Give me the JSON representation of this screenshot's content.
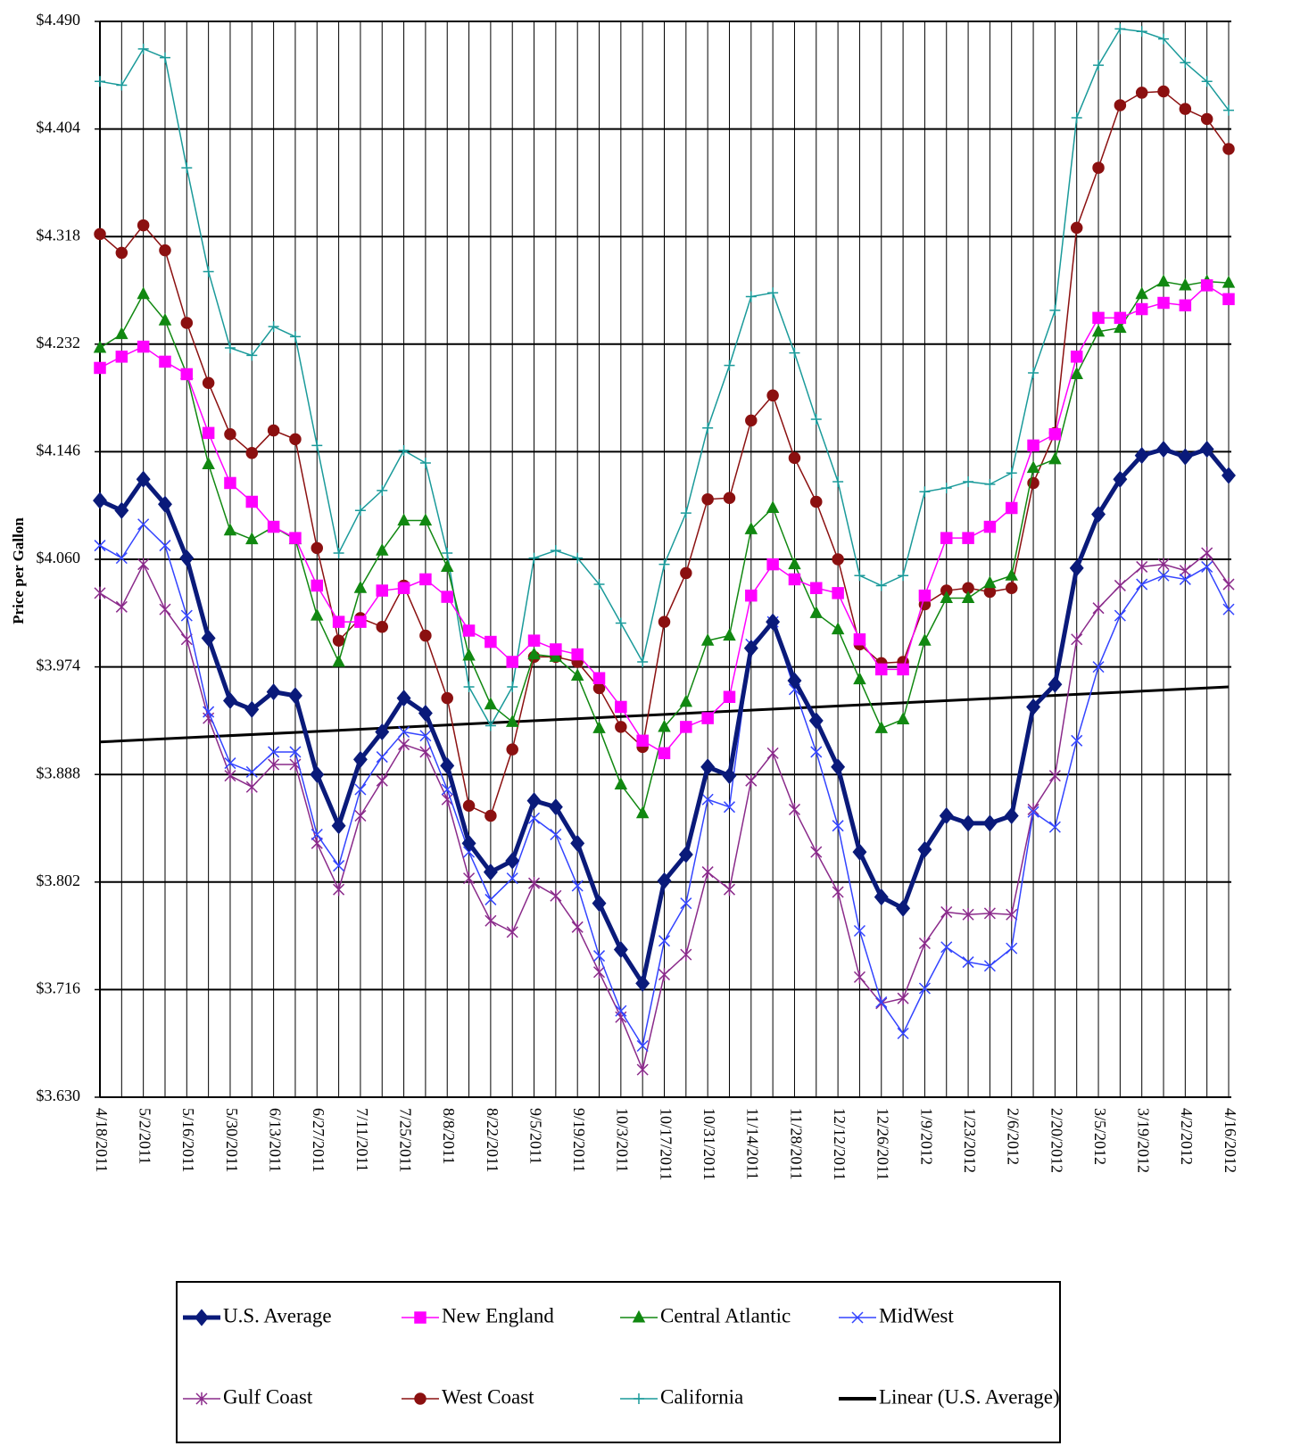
{
  "chart_data": {
    "type": "line",
    "y_label": "Price per  Gallon",
    "categories": [
      "4/18/2011",
      null,
      "5/2/2011",
      null,
      "5/16/2011",
      null,
      "5/30/2011",
      null,
      "6/13/2011",
      null,
      "6/27/2011",
      null,
      "7/11/2011",
      null,
      "7/25/2011",
      null,
      "8/8/2011",
      null,
      "8/22/2011",
      null,
      "9/5/2011",
      null,
      "9/19/2011",
      null,
      "10/3/2011",
      null,
      "10/17/2011",
      null,
      "10/31/2011",
      null,
      "11/14/2011",
      null,
      "11/28/2011",
      null,
      "12/12/2011",
      null,
      "12/26/2011",
      null,
      "1/9/2012",
      null,
      "1/23/2012",
      null,
      "2/6/2012",
      null,
      "2/20/2012",
      null,
      "3/5/2012",
      null,
      "3/19/2012",
      null,
      "4/2/2012",
      null,
      "4/16/2012"
    ],
    "ylim": [
      3.63,
      4.49
    ],
    "yticks": [
      {
        "value": 3.63,
        "label": "$3.630"
      },
      {
        "value": 3.716,
        "label": "$3.716"
      },
      {
        "value": 3.802,
        "label": "$3.802"
      },
      {
        "value": 3.888,
        "label": "$3.888"
      },
      {
        "value": 3.974,
        "label": "$3.974"
      },
      {
        "value": 4.06,
        "label": "$4.060"
      },
      {
        "value": 4.146,
        "label": "$4.146"
      },
      {
        "value": 4.232,
        "label": "$4.232"
      },
      {
        "value": 4.318,
        "label": "$4.318"
      },
      {
        "value": 4.404,
        "label": "$4.404"
      },
      {
        "value": 4.49,
        "label": "$4.490"
      }
    ],
    "grid": true,
    "series": [
      {
        "name": "U.S. Average",
        "color": "#0a1a7a",
        "marker": "diamond",
        "width": 5,
        "values": [
          4.107,
          4.099,
          4.124,
          4.104,
          4.061,
          3.997,
          3.947,
          3.94,
          3.954,
          3.951,
          3.888,
          3.847,
          3.9,
          3.922,
          3.949,
          3.937,
          3.895,
          3.833,
          3.81,
          3.819,
          3.867,
          3.862,
          3.833,
          3.785,
          3.748,
          3.721,
          3.803,
          3.824,
          3.894,
          3.887,
          3.989,
          4.01,
          3.963,
          3.931,
          3.894,
          3.826,
          3.79,
          3.781,
          3.828,
          3.855,
          3.849,
          3.849,
          3.855,
          3.942,
          3.96,
          4.053,
          4.096,
          4.124,
          4.143,
          4.148,
          4.142,
          4.148,
          4.127
        ]
      },
      {
        "name": "New England",
        "color": "#ff00ff",
        "marker": "square",
        "width": 1.5,
        "values": [
          4.213,
          4.222,
          4.23,
          4.218,
          4.208,
          4.161,
          4.121,
          4.106,
          4.086,
          4.077,
          4.039,
          4.01,
          4.01,
          4.035,
          4.037,
          4.044,
          4.03,
          4.003,
          3.994,
          3.978,
          3.995,
          3.988,
          3.984,
          3.965,
          3.942,
          3.915,
          3.905,
          3.926,
          3.933,
          3.95,
          4.031,
          4.056,
          4.044,
          4.037,
          4.033,
          3.996,
          3.972,
          3.972,
          4.031,
          4.077,
          4.077,
          4.086,
          4.101,
          4.151,
          4.16,
          4.222,
          4.253,
          4.253,
          4.26,
          4.265,
          4.263,
          4.279,
          4.268
        ]
      },
      {
        "name": "Central Atlantic",
        "color": "#118811",
        "marker": "triangle",
        "width": 1.5,
        "values": [
          4.229,
          4.24,
          4.272,
          4.251,
          4.208,
          4.136,
          4.083,
          4.076,
          4.086,
          4.076,
          4.015,
          3.978,
          4.037,
          4.067,
          4.091,
          4.091,
          4.054,
          3.983,
          3.944,
          3.93,
          3.984,
          3.982,
          3.967,
          3.925,
          3.88,
          3.857,
          3.926,
          3.946,
          3.995,
          3.999,
          4.084,
          4.101,
          4.056,
          4.017,
          4.004,
          3.964,
          3.925,
          3.932,
          3.995,
          4.029,
          4.029,
          4.041,
          4.047,
          4.133,
          4.14,
          4.208,
          4.242,
          4.245,
          4.272,
          4.282,
          4.279,
          4.282,
          4.281
        ]
      },
      {
        "name": "MidWest",
        "color": "#3344ff",
        "marker": "x",
        "width": 1.5,
        "values": [
          4.071,
          4.061,
          4.088,
          4.071,
          4.015,
          3.938,
          3.897,
          3.89,
          3.906,
          3.906,
          3.84,
          3.815,
          3.876,
          3.902,
          3.922,
          3.919,
          3.876,
          3.826,
          3.788,
          3.805,
          3.853,
          3.84,
          3.799,
          3.743,
          3.699,
          3.671,
          3.755,
          3.785,
          3.868,
          3.862,
          3.992,
          4.01,
          3.956,
          3.906,
          3.847,
          3.763,
          3.706,
          3.681,
          3.717,
          3.75,
          3.738,
          3.735,
          3.749,
          3.858,
          3.846,
          3.915,
          3.974,
          4.015,
          4.04,
          4.047,
          4.044,
          4.054,
          4.02
        ]
      },
      {
        "name": "Gulf Coast",
        "color": "#8a2a8a",
        "marker": "star",
        "width": 1.5,
        "values": [
          4.033,
          4.022,
          4.056,
          4.02,
          3.996,
          3.933,
          3.887,
          3.878,
          3.896,
          3.896,
          3.833,
          3.796,
          3.855,
          3.883,
          3.912,
          3.906,
          3.868,
          3.805,
          3.771,
          3.762,
          3.801,
          3.791,
          3.766,
          3.73,
          3.694,
          3.652,
          3.728,
          3.744,
          3.81,
          3.796,
          3.883,
          3.905,
          3.86,
          3.826,
          3.794,
          3.726,
          3.705,
          3.709,
          3.753,
          3.778,
          3.776,
          3.777,
          3.776,
          3.86,
          3.887,
          3.996,
          4.021,
          4.039,
          4.054,
          4.056,
          4.051,
          4.065,
          4.04
        ]
      },
      {
        "name": "West Coast",
        "color": "#8b1010",
        "marker": "circle",
        "width": 1.5,
        "values": [
          4.32,
          4.305,
          4.327,
          4.307,
          4.249,
          4.201,
          4.16,
          4.145,
          4.163,
          4.156,
          4.069,
          3.995,
          4.013,
          4.006,
          4.039,
          3.999,
          3.949,
          3.863,
          3.855,
          3.908,
          3.982,
          3.982,
          3.978,
          3.957,
          3.926,
          3.91,
          4.01,
          4.049,
          4.108,
          4.109,
          4.171,
          4.191,
          4.141,
          4.106,
          4.06,
          3.992,
          3.977,
          3.978,
          4.024,
          4.035,
          4.037,
          4.034,
          4.037,
          4.121,
          4.161,
          4.325,
          4.373,
          4.423,
          4.433,
          4.434,
          4.42,
          4.412,
          4.388
        ]
      },
      {
        "name": "California",
        "color": "#1a9a9a",
        "marker": "plus",
        "width": 1.5,
        "values": [
          4.442,
          4.439,
          4.468,
          4.461,
          4.373,
          4.29,
          4.229,
          4.223,
          4.246,
          4.238,
          4.151,
          4.065,
          4.099,
          4.115,
          4.147,
          4.137,
          4.065,
          3.958,
          3.927,
          3.958,
          4.061,
          4.067,
          4.061,
          4.04,
          4.009,
          3.978,
          4.056,
          4.097,
          4.165,
          4.215,
          4.27,
          4.273,
          4.225,
          4.172,
          4.122,
          4.047,
          4.039,
          4.047,
          4.114,
          4.117,
          4.122,
          4.12,
          4.129,
          4.209,
          4.259,
          4.413,
          4.455,
          4.484,
          4.482,
          4.476,
          4.457,
          4.442,
          4.419
        ]
      }
    ],
    "trendline": {
      "name": "Linear (U.S. Average)",
      "color": "#000000",
      "start": 3.914,
      "end": 3.958
    }
  }
}
